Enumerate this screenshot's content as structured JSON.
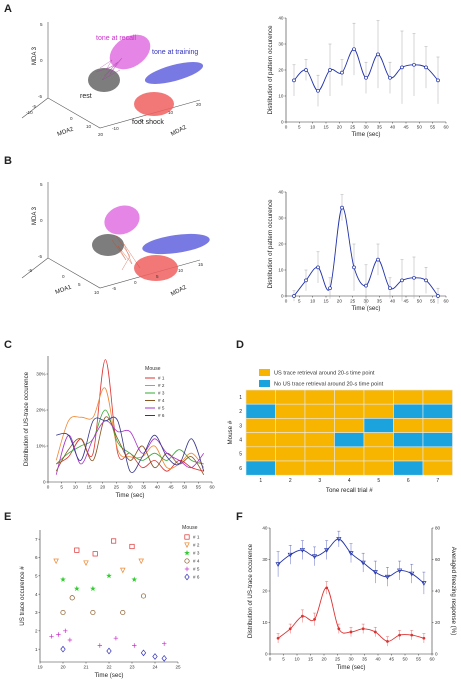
{
  "panels": {
    "A": {
      "letter": "A",
      "scatter3d": {
        "axis_labels": [
          "MDA 3",
          "MDA2",
          "MDA2"
        ],
        "ticks_z": [
          "5",
          "0",
          "-5"
        ],
        "ticks_x": [
          "-5",
          "-10",
          "0",
          "10",
          "20"
        ],
        "ticks_y": [
          "-10",
          "0",
          "10",
          "20"
        ],
        "clusters": [
          {
            "label": "tone at recall",
            "color": "#cc33cc"
          },
          {
            "label": "tone at training",
            "color": "#3333bb"
          },
          {
            "label": "rest",
            "color": "#444444"
          },
          {
            "label": "foot shock",
            "color": "#dd4444"
          }
        ]
      }
    },
    "B": {
      "letter": "B",
      "scatter3d": {
        "axis_labels": [
          "MDA 3",
          "MDA1",
          "MDA2"
        ],
        "ticks_z": [
          "5",
          "0",
          "-5"
        ],
        "ticks_x": [
          "-5",
          "0",
          "5",
          "10"
        ],
        "ticks_y": [
          "-5",
          "0",
          "5",
          "10",
          "15"
        ]
      }
    },
    "C": {
      "letter": "C"
    },
    "D": {
      "letter": "D"
    },
    "E": {
      "letter": "E"
    },
    "F": {
      "letter": "F"
    }
  },
  "chart_data": [
    {
      "id": "A-line",
      "type": "line",
      "xlabel": "Time (sec)",
      "ylabel": "Distribution of pattern occurence",
      "x": [
        3,
        7.5,
        12,
        16.5,
        21,
        25.5,
        30,
        34.5,
        39,
        43.5,
        48,
        52.5,
        57
      ],
      "y": [
        16,
        20,
        12,
        20,
        19,
        28,
        17,
        26,
        17,
        21,
        22,
        21,
        16
      ],
      "err": [
        6,
        4,
        6,
        10,
        5,
        10,
        6,
        13,
        6,
        14,
        12,
        8,
        9
      ],
      "xticks": [
        "0",
        "5",
        "10",
        "15",
        "20",
        "25",
        "30",
        "35",
        "40",
        "45",
        "50",
        "55",
        "60"
      ],
      "ylim": [
        0,
        40
      ],
      "color": "#2233aa"
    },
    {
      "id": "B-line",
      "type": "line",
      "xlabel": "Time (sec)",
      "ylabel": "Distribution of pattern occurence",
      "x": [
        3,
        7.5,
        12,
        16.5,
        21,
        25.5,
        30,
        34.5,
        39,
        43.5,
        48,
        52.5,
        57
      ],
      "y": [
        0,
        6,
        11,
        3,
        34,
        11,
        4,
        14,
        3,
        6,
        7,
        6,
        0
      ],
      "err": [
        2,
        4,
        6,
        4,
        5,
        9,
        8,
        6,
        4,
        8,
        8,
        5,
        3
      ],
      "xticks": [
        "0",
        "5",
        "10",
        "15",
        "20",
        "25",
        "30",
        "35",
        "40",
        "45",
        "50",
        "55",
        "60"
      ],
      "ylim": [
        0,
        40
      ],
      "color": "#2233aa"
    },
    {
      "id": "C-lines",
      "type": "line",
      "xlabel": "Time (sec)",
      "ylabel": "Distribution of US-trace occurence",
      "legend_title": "Mouse",
      "x": [
        3,
        7.5,
        12,
        16.5,
        21,
        25.5,
        30,
        34.5,
        39,
        43.5,
        48,
        52.5,
        57
      ],
      "xticks": [
        "0",
        "5",
        "10",
        "15",
        "20",
        "25",
        "30",
        "35",
        "40",
        "45",
        "50",
        "55",
        "60"
      ],
      "yticks": [
        "0",
        "10%",
        "20%",
        "30%"
      ],
      "ylim": [
        0,
        35
      ],
      "series": [
        {
          "name": "# 1",
          "color": "#dd3333",
          "values": [
            5,
            7,
            12,
            8,
            34,
            8,
            8,
            4,
            6,
            3,
            6,
            4,
            3
          ]
        },
        {
          "name": "# 2",
          "color": "#ee8833",
          "values": [
            6,
            17,
            18,
            18,
            26,
            9,
            7,
            7,
            10,
            4,
            5,
            8,
            4
          ]
        },
        {
          "name": "# 3",
          "color": "#33aa33",
          "values": [
            5,
            8,
            10,
            12,
            20,
            11,
            8,
            6,
            8,
            6,
            9,
            6,
            5
          ]
        },
        {
          "name": "# 4",
          "color": "#885522",
          "values": [
            3,
            9,
            12,
            6,
            18,
            12,
            6,
            10,
            4,
            8,
            5,
            7,
            2
          ]
        },
        {
          "name": "# 5",
          "color": "#aa33cc",
          "values": [
            2,
            13,
            5,
            12,
            17,
            14,
            14,
            8,
            12,
            8,
            6,
            4,
            8
          ]
        },
        {
          "name": "# 6",
          "color": "#333388",
          "values": [
            13,
            13,
            6,
            17,
            17,
            17,
            3,
            7,
            13,
            7,
            5,
            12,
            3
          ]
        }
      ]
    },
    {
      "id": "D-heatmap",
      "type": "heatmap",
      "legend": [
        {
          "label": "US trace retrieval around 20-s time point",
          "color": "#f7b500"
        },
        {
          "label": "No US trace retrieval around 20-s time point",
          "color": "#1aa3dc"
        }
      ],
      "xlabel": "Tone recall trial #",
      "ylabel": "Mouse #",
      "columns": [
        "1",
        "2",
        "3",
        "4",
        "5",
        "6",
        "7"
      ],
      "rows": [
        "1",
        "2",
        "3",
        "4",
        "5",
        "6"
      ],
      "values": [
        [
          1,
          1,
          1,
          1,
          1,
          1,
          1
        ],
        [
          0,
          1,
          1,
          1,
          1,
          0,
          0
        ],
        [
          1,
          1,
          1,
          1,
          0,
          1,
          1
        ],
        [
          1,
          1,
          1,
          0,
          1,
          0,
          0
        ],
        [
          1,
          1,
          1,
          1,
          1,
          1,
          1
        ],
        [
          0,
          1,
          1,
          1,
          1,
          0,
          1
        ]
      ]
    },
    {
      "id": "E-scatter",
      "type": "scatter",
      "xlabel": "Time (sec)",
      "ylabel": "US trace occurence #",
      "legend_title": "Mouse",
      "xticks": [
        "19",
        "20",
        "21",
        "22",
        "23",
        "24",
        "25"
      ],
      "yticks": [
        "1",
        "2",
        "3",
        "4",
        "5",
        "6",
        "7"
      ],
      "xlim": [
        19,
        25
      ],
      "ylim": [
        0.3,
        7.5
      ],
      "series": [
        {
          "name": "# 1",
          "color": "#dd3333",
          "marker": "square",
          "points": [
            [
              20.6,
              6.4
            ],
            [
              21.4,
              6.2
            ],
            [
              22.2,
              6.9
            ],
            [
              23.0,
              6.6
            ]
          ]
        },
        {
          "name": "# 2",
          "color": "#ee8833",
          "marker": "triangle-down",
          "points": [
            [
              19.7,
              5.8
            ],
            [
              21.0,
              5.7
            ],
            [
              22.6,
              5.3
            ],
            [
              23.4,
              5.8
            ]
          ]
        },
        {
          "name": "# 3",
          "color": "#33cc33",
          "marker": "star",
          "points": [
            [
              20.0,
              4.8
            ],
            [
              20.6,
              4.3
            ],
            [
              21.3,
              4.3
            ],
            [
              22.0,
              5.0
            ],
            [
              23.1,
              4.8
            ]
          ]
        },
        {
          "name": "# 4",
          "color": "#885522",
          "marker": "circle",
          "points": [
            [
              20.0,
              3.0
            ],
            [
              20.4,
              3.8
            ],
            [
              21.3,
              3.0
            ],
            [
              22.6,
              3.0
            ],
            [
              23.5,
              3.9
            ]
          ]
        },
        {
          "name": "# 5",
          "color": "#cc33cc",
          "marker": "plus",
          "points": [
            [
              19.5,
              1.7
            ],
            [
              19.8,
              1.8
            ],
            [
              20.1,
              2.0
            ],
            [
              20.3,
              1.5
            ],
            [
              21.6,
              1.2
            ],
            [
              22.3,
              1.6
            ],
            [
              23.1,
              1.2
            ],
            [
              24.4,
              1.3
            ]
          ]
        },
        {
          "name": "# 6",
          "color": "#3333bb",
          "marker": "diamond",
          "points": [
            [
              20.0,
              1.0
            ],
            [
              22.0,
              0.9
            ],
            [
              23.5,
              0.8
            ],
            [
              24.0,
              0.6
            ],
            [
              24.4,
              0.5
            ]
          ]
        }
      ]
    },
    {
      "id": "F-dual",
      "type": "line",
      "xlabel": "Time (sec)",
      "ylabel": "Distribution of US-trace occurence",
      "ylabel_right": "Averaged freezing response (%)",
      "x": [
        3,
        7.5,
        12,
        16.5,
        21,
        25.5,
        30,
        34.5,
        39,
        43.5,
        48,
        52.5,
        57
      ],
      "xticks": [
        "0",
        "5",
        "10",
        "15",
        "20",
        "25",
        "30",
        "35",
        "40",
        "45",
        "50",
        "55",
        "60"
      ],
      "yticks_left": [
        "0",
        "10",
        "20",
        "30",
        "40"
      ],
      "yticks_right": [
        "0",
        "20",
        "40",
        "60",
        "80"
      ],
      "ylim": [
        0,
        40
      ],
      "ylim_right": [
        0,
        80
      ],
      "series": [
        {
          "name": "US-trace occurence",
          "axis": "left",
          "color": "#dd3333",
          "values": [
            5,
            8,
            12,
            11,
            21,
            8,
            7,
            8,
            7,
            4,
            6,
            6,
            5
          ],
          "err": [
            1.5,
            1.5,
            2,
            2,
            2,
            1.5,
            1.5,
            1.5,
            1.5,
            1.5,
            1.5,
            1.5,
            1.5
          ]
        },
        {
          "name": "Freezing response",
          "axis": "right",
          "color": "#2233aa",
          "values": [
            57,
            63,
            66,
            62,
            66,
            73,
            64,
            58,
            52,
            49,
            53,
            51,
            45
          ],
          "err": [
            8,
            6,
            6,
            6,
            6,
            5,
            6,
            6,
            7,
            6,
            6,
            6,
            7
          ]
        }
      ]
    }
  ]
}
